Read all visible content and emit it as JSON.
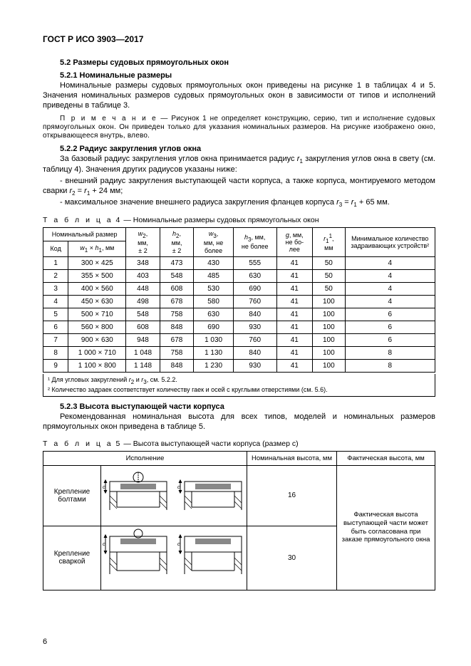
{
  "doc_header": "ГОСТ Р ИСО 3903—2017",
  "s52_title": "5.2 Размеры судовых прямоугольных окон",
  "s521_title": "5.2.1 Номинальные размеры",
  "p521_1": "Номинальные размеры судовых прямоугольных окон приведены на рисунке 1 в таблицах 4 и 5. Значения номинальных размеров судовых прямоугольных окон в зависимости от типов и исполнений приведены в таблице 3.",
  "note_label": "П р и м е ч а н и е",
  "note_text": " — Рисунок 1 не определяет конструкцию, серию, тип и исполнение судовых прямоугольных окон. Он приведен только для указания номинальных размеров. На рисунке изображено окно, открывающееся внутрь, влево.",
  "s522_title": "5.2.2 Радиус закругления углов окна",
  "p522_1_a": "За базовый радиус закругления углов окна принимается радиус ",
  "p522_1_b": " закругления углов окна в свету (см. таблицу 4). Значения других радиусов указаны ниже:",
  "b522_1_a": "- внешний радиус закругления выступающей части корпуса, а также корпуса, монтируемого методом сварки ",
  "b522_1_b": " + 24 мм;",
  "b522_2_a": "- максимальное значение внешнего радиуса закругления фланцев корпуса ",
  "b522_2_b": " + 65 мм.",
  "t4_caption_label": "Т а б л и ц а",
  "t4_caption_num": " 4 ",
  "t4_caption_text": "— Номинальные размеры судовых прямоугольных окон",
  "t4_headers": {
    "nom": "Номинальный размер",
    "code": "Код",
    "wh": "w₁ × h₁, мм",
    "w2": "w₂, мм, ± 2",
    "h2": "h₂, мм, ± 2",
    "w3": "w₃, мм, не более",
    "h3": "h₃, мм, не более",
    "g": "g, мм, не более",
    "r1": "r₁¹, мм",
    "min": "Минимальное количество задраивающих устройств²"
  },
  "t4_rows": [
    [
      "1",
      "300 × 425",
      "348",
      "473",
      "430",
      "555",
      "41",
      "50",
      "4"
    ],
    [
      "2",
      "355 × 500",
      "403",
      "548",
      "485",
      "630",
      "41",
      "50",
      "4"
    ],
    [
      "3",
      "400 × 560",
      "448",
      "608",
      "530",
      "690",
      "41",
      "50",
      "4"
    ],
    [
      "4",
      "450 × 630",
      "498",
      "678",
      "580",
      "760",
      "41",
      "100",
      "4"
    ],
    [
      "5",
      "500 × 710",
      "548",
      "758",
      "630",
      "840",
      "41",
      "100",
      "6"
    ],
    [
      "6",
      "560 × 800",
      "608",
      "848",
      "690",
      "930",
      "41",
      "100",
      "6"
    ],
    [
      "7",
      "900 × 630",
      "948",
      "678",
      "1 030",
      "760",
      "41",
      "100",
      "6"
    ],
    [
      "8",
      "1 000 × 710",
      "1 048",
      "758",
      "1 130",
      "840",
      "41",
      "100",
      "8"
    ],
    [
      "9",
      "1 100 × 800",
      "1 148",
      "848",
      "1 230",
      "930",
      "41",
      "100",
      "8"
    ]
  ],
  "t4_fn1_a": "¹ Для угловых закруглений  ",
  "t4_fn1_b": ", см. 5.2.2.",
  "t4_fn2": "² Количество задраек соответствует количеству гаек и осей с круглыми отверстиями (см. 5.6).",
  "s523_title": "5.2.3 Высота выступающей части корпуса",
  "p523_1": "Рекомендованная номинальная высота для всех типов, моделей и номинальных размеров прямоугольных окон приведена в таблице 5.",
  "t5_caption_label": "Т а б л и ц а",
  "t5_caption_num": " 5 ",
  "t5_caption_text": "— Высота выступающей части корпуса (размер c)",
  "t5_headers": {
    "exec": "Исполнение",
    "nom_h": "Номинальная высота, мм",
    "fact_h": "Фактическая высота, мм"
  },
  "t5_r1_label": "Крепление болтами",
  "t5_r1_val": "16",
  "t5_r2_label": "Крепление сваркой",
  "t5_r2_val": "30",
  "t5_fact_text": "Фактическая высота выступающей части может быть согласована при заказе прямоугольного окна",
  "pagenum": "6"
}
